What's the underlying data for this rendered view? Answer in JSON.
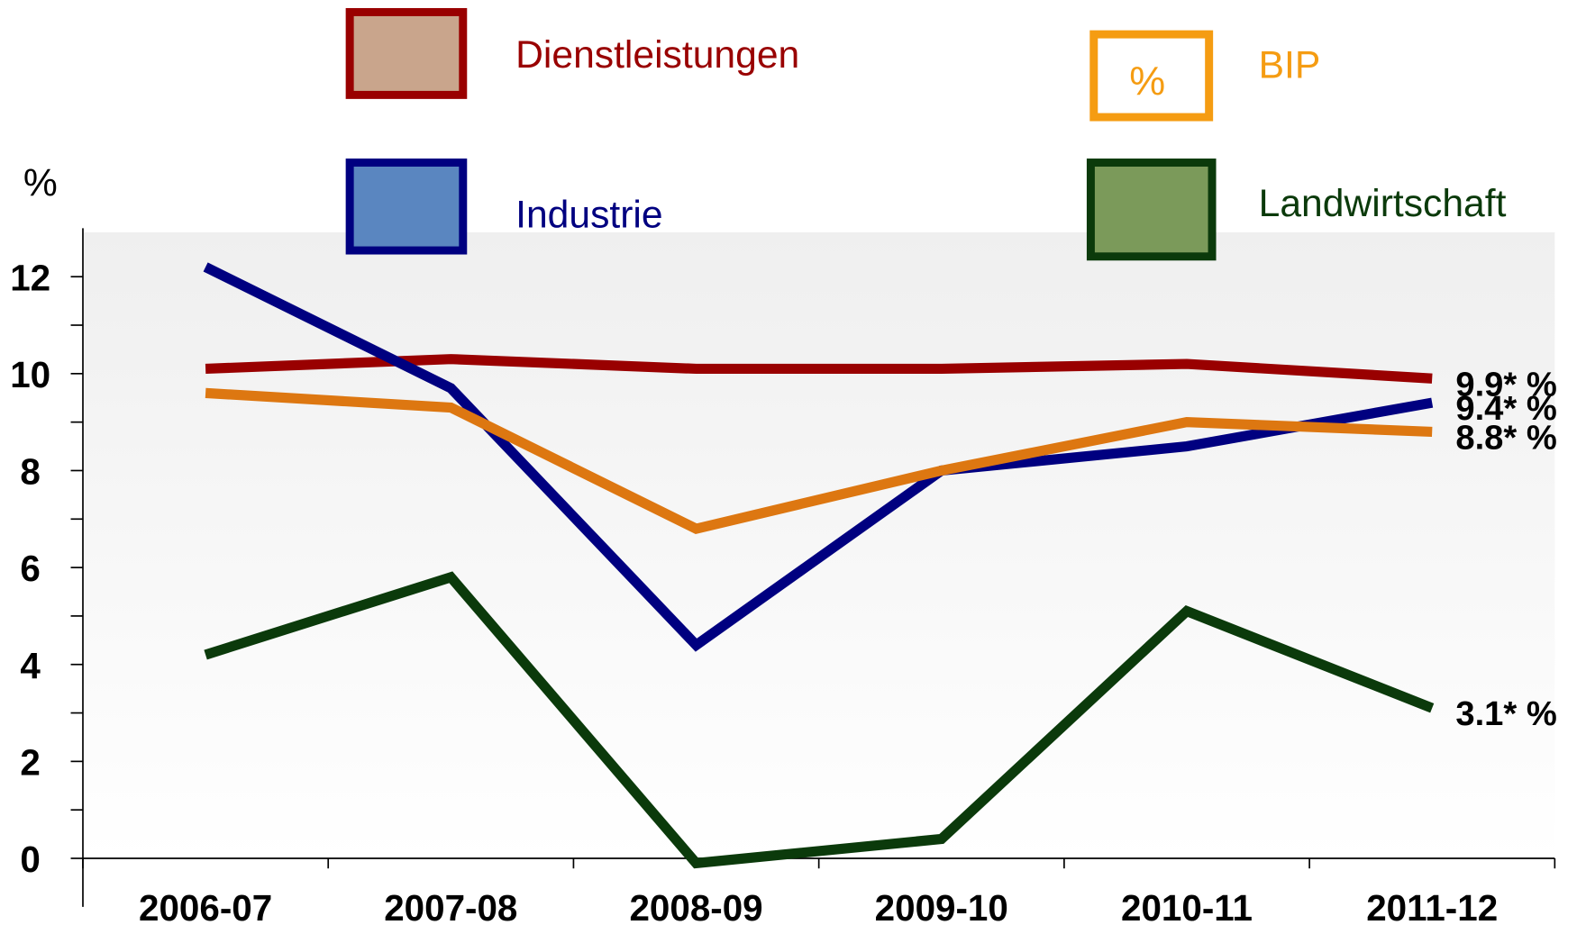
{
  "chart_data": {
    "type": "line",
    "y_label": "%",
    "categories": [
      "2006-07",
      "2007-08",
      "2008-09",
      "2009-10",
      "2010-11",
      "2011-12"
    ],
    "series": [
      {
        "name": "Dienstleistungen",
        "color": "#990000",
        "values": [
          10.1,
          10.3,
          10.1,
          10.1,
          10.2,
          9.9
        ],
        "value_labels": [
          null,
          null,
          null,
          null,
          null,
          "9.9* %"
        ]
      },
      {
        "name": "Industrie",
        "color": "#000080",
        "values": [
          12.2,
          9.7,
          4.4,
          8.0,
          8.5,
          9.4
        ],
        "value_labels": [
          null,
          null,
          null,
          null,
          null,
          "9.4* %"
        ]
      },
      {
        "name": "BIP",
        "color": "#dd7711",
        "legend_color": "#f59c12",
        "icon_label": "%",
        "values": [
          9.6,
          9.3,
          6.8,
          8.0,
          9.0,
          8.8
        ],
        "value_labels": [
          null,
          null,
          null,
          null,
          null,
          "8.8* %"
        ]
      },
      {
        "name": "Landwirtschaft",
        "color": "#0b3a0b",
        "values": [
          4.2,
          5.8,
          -0.1,
          0.4,
          5.1,
          3.1
        ],
        "value_labels": [
          null,
          null,
          null,
          null,
          null,
          "3.1* %"
        ]
      }
    ],
    "ylim": [
      -1,
      13
    ],
    "yticks": [
      0,
      2,
      4,
      6,
      8,
      10,
      12
    ],
    "yminorticks": [
      1,
      3,
      5,
      7,
      9,
      11
    ]
  }
}
